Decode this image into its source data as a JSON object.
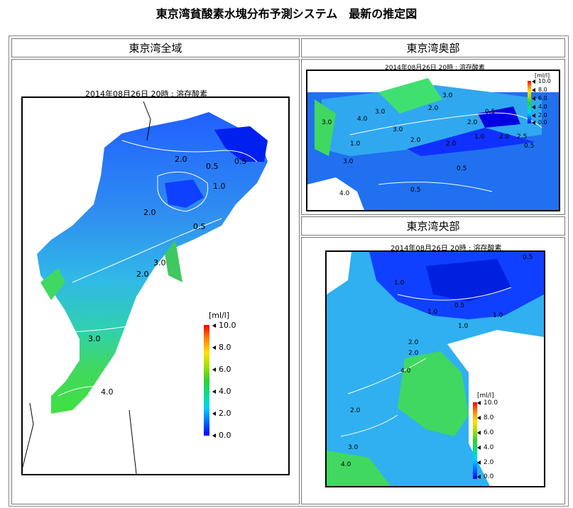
{
  "page": {
    "title": "東京湾貧酸素水塊分布予測システム　最新の推定図"
  },
  "panels": {
    "whole": {
      "header": "東京湾全域",
      "caption": "2014年08月26日 20時 : 溶存酸素",
      "contour_labels": [
        "2.0",
        "0.5",
        "0.5",
        "1.0",
        "2.0",
        "0.5",
        "3.0",
        "2.0",
        "3.0",
        "4.0"
      ]
    },
    "inner": {
      "header": "東京湾奥部",
      "caption": "2014年08月26日 20時 : 溶存酸素",
      "contour_labels": [
        "3.0",
        "3.0",
        "4.0",
        "3.0",
        "3.0",
        "2.0",
        "2.0",
        "2.0",
        "1.0",
        "2.0",
        "0.5",
        "2.5",
        "0.5",
        "3.0",
        "4.0",
        "0.5",
        "0.5",
        "1.0",
        "2.0"
      ]
    },
    "central": {
      "header": "東京湾央部",
      "caption": "2014年08月26日 20時 : 溶存酸素",
      "contour_labels": [
        "0.5",
        "1.0",
        "1.0",
        "0.5",
        "1.0",
        "1.0",
        "2.0",
        "2.0",
        "4.0",
        "2.0",
        "3.0",
        "4.0"
      ]
    }
  },
  "legend": {
    "unit": "[ml/l]",
    "ticks": [
      "10.0",
      "8.0",
      "6.0",
      "4.0",
      "2.0",
      "0.0"
    ]
  },
  "colors": {
    "low_do": "#0000ff",
    "mid_do": "#00d0ff",
    "high_do": "#30d030",
    "max_do": "#ff0000",
    "land": "#ffffff",
    "contour": "#ffffff"
  }
}
